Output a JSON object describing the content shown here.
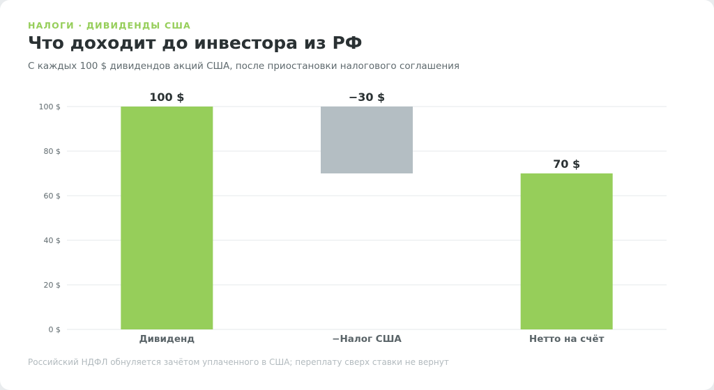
{
  "header": {
    "eyebrow": "НАЛОГИ · ДИВИДЕНДЫ США",
    "title": "Что доходит до инвестора из РФ",
    "subtitle": "С каждых 100 $ дивидендов акций США, после приостановки налогового соглашения"
  },
  "footnote": "Российский НДФЛ обнуляется зачётом уплаченного в США; переплату сверх ставки не вернут",
  "colors": {
    "positive": "#96ce5a",
    "negative": "#b4bec3",
    "accent": "#96ce5a"
  },
  "chart_data": {
    "type": "bar",
    "subtype": "waterfall",
    "categories": [
      "Дивиденд",
      "−Налог США",
      "Нетто на счёт"
    ],
    "steps": [
      {
        "category": "Дивиденд",
        "start": 0,
        "end": 100,
        "value": 100,
        "label": "100 $",
        "kind": "total"
      },
      {
        "category": "−Налог США",
        "start": 70,
        "end": 100,
        "value": -30,
        "label": "−30 $",
        "kind": "delta"
      },
      {
        "category": "Нетто на счёт",
        "start": 0,
        "end": 70,
        "value": 70,
        "label": "70 $",
        "kind": "total"
      }
    ],
    "ylim": [
      0,
      100
    ],
    "yticks": [
      0,
      20,
      40,
      60,
      80,
      100
    ],
    "ytick_labels": [
      "0 $",
      "20 $",
      "40 $",
      "60 $",
      "80 $",
      "100 $"
    ],
    "grid": true,
    "legend": "none"
  }
}
